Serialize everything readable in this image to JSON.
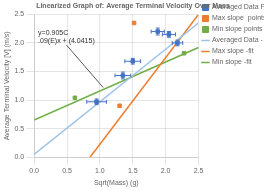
{
  "chart_data": {
    "type": "scatter",
    "title": "Linearized Graph of: Average Terminal Velocity Over Mass",
    "x_label": "Sqrt(Mass) (g)",
    "y_label": "Average Terminal Velocity [V] (m/s)",
    "xlim": [
      0,
      2.5
    ],
    "ylim": [
      0,
      2.5
    ],
    "xticks": [
      {
        "value": 0,
        "label": "0.0"
      },
      {
        "value": 0.5,
        "label": "0.5"
      },
      {
        "value": 1.0,
        "label": "1.0"
      },
      {
        "value": 1.5,
        "label": "1.5"
      },
      {
        "value": 2.0,
        "label": "2.0"
      },
      {
        "value": 2.5,
        "label": "2.5"
      }
    ],
    "yticks": [
      {
        "value": 0,
        "label": "0.0"
      },
      {
        "value": 0.5,
        "label": "0.5"
      },
      {
        "value": 1.0,
        "label": "1.0"
      },
      {
        "value": 1.5,
        "label": "1.5"
      },
      {
        "value": 2.0,
        "label": "2.0"
      },
      {
        "value": 2.5,
        "label": "2.5"
      }
    ],
    "grid": true,
    "legend": "right",
    "series": [
      {
        "name": "Averaged Data Points",
        "type": "scatter",
        "marker": "square",
        "color": "#4472c4",
        "x": [
          0.95,
          1.35,
          1.5,
          1.88,
          2.05,
          2.18
        ],
        "values": [
          0.97,
          1.43,
          1.68,
          2.2,
          2.15,
          2.0
        ],
        "xerr": [
          0.15,
          0.12,
          0.12,
          0.1,
          0.1,
          0.08
        ],
        "yerr": [
          0.05,
          0.06,
          0.05,
          0.06,
          0.05,
          0.05
        ]
      },
      {
        "name": "Max slope  points",
        "type": "scatter",
        "marker": "square",
        "color": "#ed7d31",
        "x": [
          1.3,
          1.52
        ],
        "values": [
          0.9,
          2.35
        ]
      },
      {
        "name": "Min slope points",
        "type": "scatter",
        "marker": "square",
        "color": "#70ad47",
        "x": [
          0.62,
          2.28
        ],
        "values": [
          1.04,
          1.82
        ]
      },
      {
        "name": "Averaged Data - fit",
        "type": "line",
        "color": "#9dc3e6",
        "x": [
          0.0,
          2.5
        ],
        "values": [
          0.05,
          2.35
        ]
      },
      {
        "name": "Max slope -fit",
        "type": "line",
        "color": "#ed7d31",
        "x": [
          0.85,
          2.5
        ],
        "values": [
          0.0,
          2.5
        ]
      },
      {
        "name": "Min slope -fit",
        "type": "line",
        "color": "#70ad47",
        "x": [
          0.0,
          2.5
        ],
        "values": [
          0.65,
          1.92
        ]
      }
    ],
    "annotations": [
      {
        "text": [
          "y=0.905C",
          ".09(E)x + (4.0415)"
        ],
        "x": 0.03,
        "y": 2.0,
        "arrow_to": [
          1.05,
          1.22
        ],
        "color": "#595959"
      }
    ]
  }
}
